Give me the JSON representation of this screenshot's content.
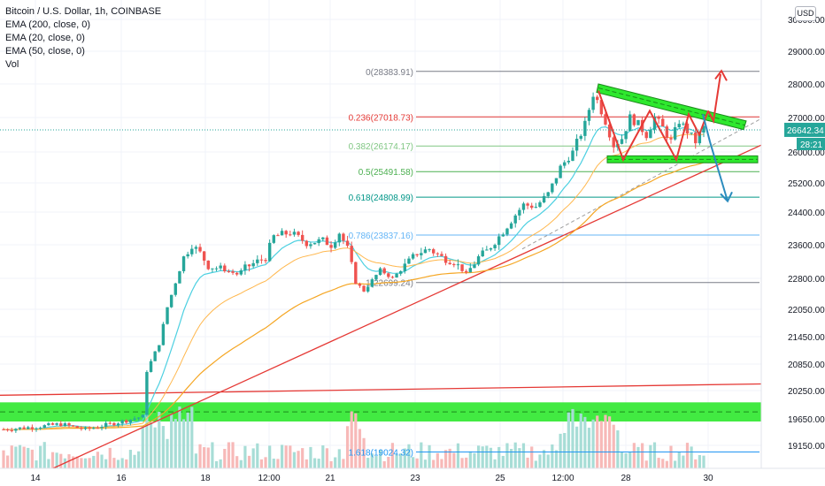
{
  "legend": {
    "title": "Bitcoin / U.S. Dollar, 1h, COINBASE",
    "ema200": "EMA (200, close, 0)",
    "ema20": "EMA (20, close, 0)",
    "ema50": "EMA (50, close, 0)",
    "vol": "Vol"
  },
  "currency_button": "USD",
  "colors": {
    "up": "#26a69a",
    "down": "#ef5350",
    "ema200": "#f5a623",
    "ema20": "#4dd0e1",
    "trend_red": "#e53935",
    "zone_green": "#2ee82e",
    "fib_grey": "#787b86",
    "arrow_red": "#e53935",
    "arrow_blue": "#2b8cbe",
    "price_tag": "#26a69a"
  },
  "chart_data": {
    "type": "candlestick",
    "title": "Bitcoin / U.S. Dollar, 1h, COINBASE",
    "ylim": [
      18600,
      30400
    ],
    "y_tick_labels": [
      "30000.00",
      "29000.00",
      "28000.00",
      "27000.00",
      "26000.00",
      "25200.00",
      "24400.00",
      "23600.00",
      "22800.00",
      "22050.00",
      "21450.00",
      "20850.00",
      "20250.00",
      "19650.00",
      "19150.00"
    ],
    "y_tick_values": [
      30000,
      29000,
      28000,
      27000,
      26000,
      25200,
      24400,
      23600,
      22800,
      22050,
      21450,
      20850,
      20250,
      19650,
      19150
    ],
    "x_tick_labels": [
      "14",
      "16",
      "18",
      "12:00",
      "21",
      "23",
      "25",
      "12:00",
      "28",
      "30"
    ],
    "x_tick_positions": [
      0.0,
      0.155,
      0.272,
      0.394,
      0.515,
      0.637,
      0.758,
      0.879,
      1.0,
      1.233
    ],
    "current_price": "26642.34",
    "countdown": "28:21",
    "fib_levels": [
      {
        "label": "0(28383.91)",
        "value": 28383.91,
        "color": "#787b86"
      },
      {
        "label": "0.236(27018.73)",
        "value": 27018.73,
        "color": "#e53935"
      },
      {
        "label": "0.382(26174.17)",
        "value": 26174.17,
        "color": "#81c784"
      },
      {
        "label": "0.5(25491.58)",
        "value": 25491.58,
        "color": "#4caf50"
      },
      {
        "label": "0.618(24808.99)",
        "value": 24808.99,
        "color": "#009688"
      },
      {
        "label": "0.786(23837.16)",
        "value": 23837.16,
        "color": "#64b5f6"
      },
      {
        "label": "1(22699.24)",
        "value": 22699.24,
        "color": "#787b86"
      },
      {
        "label": "1.618(19024.32)",
        "value": 19024.32,
        "color": "#2196f3"
      }
    ],
    "ohlc_keypoints": [
      [
        0,
        19450
      ],
      [
        8,
        19500
      ],
      [
        14,
        19550
      ],
      [
        20,
        19450
      ],
      [
        26,
        19550
      ],
      [
        30,
        19620
      ],
      [
        34,
        19700
      ],
      [
        35,
        20700
      ],
      [
        38,
        21300
      ],
      [
        40,
        22100
      ],
      [
        42,
        22700
      ],
      [
        44,
        23300
      ],
      [
        46,
        23600
      ],
      [
        48,
        23400
      ],
      [
        50,
        23100
      ],
      [
        54,
        23000
      ],
      [
        57,
        22900
      ],
      [
        60,
        23100
      ],
      [
        64,
        23300
      ],
      [
        66,
        23800
      ],
      [
        70,
        23900
      ],
      [
        74,
        23650
      ],
      [
        78,
        23700
      ],
      [
        80,
        23600
      ],
      [
        82,
        23900
      ],
      [
        84,
        23500
      ],
      [
        86,
        22700
      ],
      [
        88,
        22500
      ],
      [
        92,
        23000
      ],
      [
        95,
        22800
      ],
      [
        98,
        23100
      ],
      [
        101,
        23400
      ],
      [
        104,
        23500
      ],
      [
        107,
        23300
      ],
      [
        110,
        23200
      ],
      [
        113,
        22900
      ],
      [
        116,
        23300
      ],
      [
        118,
        23450
      ],
      [
        121,
        23800
      ],
      [
        124,
        24200
      ],
      [
        127,
        24600
      ],
      [
        130,
        24550
      ],
      [
        133,
        24900
      ],
      [
        136,
        25600
      ],
      [
        139,
        26000
      ],
      [
        142,
        26800
      ],
      [
        144,
        27700
      ],
      [
        145,
        27500
      ],
      [
        147,
        26900
      ],
      [
        149,
        26200
      ],
      [
        151,
        26400
      ],
      [
        153,
        27000
      ],
      [
        155,
        26800
      ],
      [
        157,
        26500
      ],
      [
        159,
        27000
      ],
      [
        161,
        26700
      ],
      [
        163,
        26300
      ],
      [
        165,
        26900
      ],
      [
        167,
        26600
      ],
      [
        169,
        26300
      ],
      [
        171,
        26700
      ]
    ],
    "volume_profile": "higher on breakout days (16th-17th, 24th-26th)",
    "annotations": {
      "descending_channel": "green band from 27900 down to 26750",
      "support_zone": "green band 25750-25900",
      "lower_support_zone": "wide green band 19600-20000",
      "red_arrow_target": "up toward 28500",
      "blue_arrow_target": "down toward 24700"
    }
  }
}
